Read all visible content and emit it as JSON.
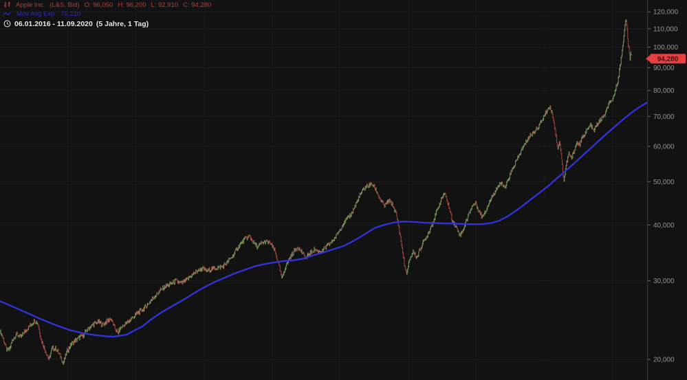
{
  "colors": {
    "background": "#121212",
    "grid": "#1d1d1d",
    "grid_vertical": "#1b1b1b",
    "candle_up": "#86a86a",
    "candle_down": "#ad4a40",
    "moving_average": "#3232d6",
    "axis_text": "#949494",
    "axis_line": "#3a3a3a",
    "tick": "#6e6e6e",
    "badge": "#e84040",
    "badge_text": "#481110",
    "header_red": "#a84440",
    "header_blue": "#2d2db4",
    "header_white": "#e6e6e6"
  },
  "header": {
    "instrument": {
      "icon": "ohlc-bars-icon",
      "name": "Apple Inc.",
      "feed": "(L&S, Bid)",
      "ohlc": {
        "open": "O: 96,050",
        "high": "H: 96,200",
        "low": "L: 92,910",
        "close": "C: 94,280"
      }
    },
    "indicator": {
      "icon": "ma-line-icon",
      "label": "Mov Avg Exp",
      "value": "75,210"
    },
    "range": {
      "icon": "clock-icon",
      "dates": "06.01.2016 - 11.09.2020",
      "granularity": "(5 Jahre, 1 Tag)"
    }
  },
  "y_axis": {
    "scale": "log",
    "ticks": [
      {
        "value": 120,
        "label": "120,000"
      },
      {
        "value": 110,
        "label": "110,000"
      },
      {
        "value": 100,
        "label": "100,000"
      },
      {
        "value": 90,
        "label": "90,000"
      },
      {
        "value": 80,
        "label": "80,000"
      },
      {
        "value": 70,
        "label": "70,000"
      },
      {
        "value": 60,
        "label": "60,000"
      },
      {
        "value": 50,
        "label": "50,000"
      },
      {
        "value": 40,
        "label": "40,000"
      },
      {
        "value": 30,
        "label": "30,000"
      },
      {
        "value": 20,
        "label": "20,000"
      }
    ]
  },
  "price_marker": {
    "label": "94,280",
    "value": 94.28
  },
  "chart_data": {
    "type": "candlestick",
    "instrument": "Apple Inc. (L&S, Bid)",
    "date_range": "06.01.2016 - 11.09.2020",
    "timeframe": "1 Tag",
    "range_label": "5 Jahre",
    "y_scale": "log",
    "ylim": [
      17.9,
      127.7
    ],
    "y_ticks": [
      120,
      110,
      100,
      90,
      80,
      70,
      60,
      50,
      40,
      30,
      20
    ],
    "last_candle": {
      "open": 96.05,
      "high": 96.2,
      "low": 92.91,
      "close": 94.28
    },
    "time_gridlines_x": [
      98,
      198,
      297,
      396,
      494,
      594,
      692,
      792,
      890
    ],
    "price_path": [
      [
        0,
        23.2
      ],
      [
        5,
        22.2
      ],
      [
        10,
        20.9
      ],
      [
        14,
        21.1
      ],
      [
        18,
        22.1
      ],
      [
        24,
        22.8
      ],
      [
        30,
        22.4
      ],
      [
        36,
        23.1
      ],
      [
        44,
        23.8
      ],
      [
        50,
        24.4
      ],
      [
        55,
        24.1
      ],
      [
        60,
        22.1
      ],
      [
        66,
        20.9
      ],
      [
        71,
        19.95
      ],
      [
        76,
        21.2
      ],
      [
        82,
        21.1
      ],
      [
        88,
        20.3
      ],
      [
        92,
        19.6
      ],
      [
        97,
        20.8
      ],
      [
        104,
        21.7
      ],
      [
        112,
        22.2
      ],
      [
        120,
        22.6
      ],
      [
        128,
        23.4
      ],
      [
        136,
        24.0
      ],
      [
        143,
        24.3
      ],
      [
        149,
        23.9
      ],
      [
        155,
        24.3
      ],
      [
        161,
        24.7
      ],
      [
        166,
        23.7
      ],
      [
        171,
        22.9
      ],
      [
        176,
        23.6
      ],
      [
        182,
        24.0
      ],
      [
        188,
        24.4
      ],
      [
        194,
        24.9
      ],
      [
        200,
        25.4
      ],
      [
        208,
        25.9
      ],
      [
        216,
        26.7
      ],
      [
        224,
        27.6
      ],
      [
        232,
        28.4
      ],
      [
        240,
        29.1
      ],
      [
        248,
        29.5
      ],
      [
        256,
        30.0
      ],
      [
        263,
        29.6
      ],
      [
        270,
        30.0
      ],
      [
        278,
        30.8
      ],
      [
        286,
        31.5
      ],
      [
        294,
        32.0
      ],
      [
        301,
        31.5
      ],
      [
        308,
        31.9
      ],
      [
        316,
        32.1
      ],
      [
        324,
        32.3
      ],
      [
        332,
        33.2
      ],
      [
        340,
        34.4
      ],
      [
        348,
        36.0
      ],
      [
        356,
        37.2
      ],
      [
        363,
        37.8
      ],
      [
        369,
        36.4
      ],
      [
        375,
        35.7
      ],
      [
        381,
        36.5
      ],
      [
        387,
        36.7
      ],
      [
        393,
        36.4
      ],
      [
        399,
        35.2
      ],
      [
        405,
        32.8
      ],
      [
        410,
        30.3
      ],
      [
        415,
        32.2
      ],
      [
        421,
        33.7
      ],
      [
        427,
        34.8
      ],
      [
        433,
        35.8
      ],
      [
        439,
        34.7
      ],
      [
        445,
        33.7
      ],
      [
        451,
        34.6
      ],
      [
        457,
        35.3
      ],
      [
        463,
        34.9
      ],
      [
        469,
        35.0
      ],
      [
        475,
        35.8
      ],
      [
        481,
        36.5
      ],
      [
        487,
        37.4
      ],
      [
        493,
        38.8
      ],
      [
        499,
        40.2
      ],
      [
        505,
        41.3
      ],
      [
        511,
        42.4
      ],
      [
        517,
        44.3
      ],
      [
        523,
        46.4
      ],
      [
        529,
        48.2
      ],
      [
        535,
        49.0
      ],
      [
        541,
        49.4
      ],
      [
        547,
        47.8
      ],
      [
        553,
        45.6
      ],
      [
        559,
        44.0
      ],
      [
        565,
        45.3
      ],
      [
        571,
        44.4
      ],
      [
        577,
        41.8
      ],
      [
        583,
        37.0
      ],
      [
        589,
        31.8
      ],
      [
        592,
        31.3
      ],
      [
        596,
        33.6
      ],
      [
        601,
        34.9
      ],
      [
        606,
        33.7
      ],
      [
        611,
        35.4
      ],
      [
        617,
        36.9
      ],
      [
        623,
        38.4
      ],
      [
        629,
        40.3
      ],
      [
        635,
        42.8
      ],
      [
        641,
        45.4
      ],
      [
        646,
        47.2
      ],
      [
        651,
        45.0
      ],
      [
        657,
        41.3
      ],
      [
        663,
        39.6
      ],
      [
        669,
        37.9
      ],
      [
        674,
        39.2
      ],
      [
        680,
        41.7
      ],
      [
        686,
        43.9
      ],
      [
        691,
        44.9
      ],
      [
        696,
        43.2
      ],
      [
        701,
        41.6
      ],
      [
        707,
        43.4
      ],
      [
        713,
        45.4
      ],
      [
        719,
        47.4
      ],
      [
        725,
        49.0
      ],
      [
        730,
        49.6
      ],
      [
        734,
        48.2
      ],
      [
        740,
        51.0
      ],
      [
        746,
        53.6
      ],
      [
        752,
        56.1
      ],
      [
        758,
        58.6
      ],
      [
        764,
        61.1
      ],
      [
        770,
        63.1
      ],
      [
        776,
        64.6
      ],
      [
        782,
        66.1
      ],
      [
        788,
        68.6
      ],
      [
        794,
        71.6
      ],
      [
        799,
        73.6
      ],
      [
        803,
        71.5
      ],
      [
        807,
        65.5
      ],
      [
        811,
        59.5
      ],
      [
        814,
        61.5
      ],
      [
        817,
        55.5
      ],
      [
        820,
        50.2
      ],
      [
        823,
        54.0
      ],
      [
        827,
        57.8
      ],
      [
        831,
        56.3
      ],
      [
        835,
        58.8
      ],
      [
        839,
        61.2
      ],
      [
        843,
        60.4
      ],
      [
        847,
        62.8
      ],
      [
        851,
        64.3
      ],
      [
        855,
        65.6
      ],
      [
        859,
        67.0
      ],
      [
        863,
        64.7
      ],
      [
        867,
        66.8
      ],
      [
        871,
        68.0
      ],
      [
        875,
        69.3
      ],
      [
        879,
        70.3
      ],
      [
        883,
        72.8
      ],
      [
        887,
        75.8
      ],
      [
        890,
        74.6
      ],
      [
        893,
        78.4
      ],
      [
        896,
        81.4
      ],
      [
        899,
        85.0
      ],
      [
        902,
        91.0
      ],
      [
        905,
        99.0
      ],
      [
        907,
        106.0
      ],
      [
        909,
        112.5
      ],
      [
        910,
        115.3
      ],
      [
        912,
        109.5
      ],
      [
        913,
        103.5
      ],
      [
        915,
        97.0
      ],
      [
        916,
        93.4
      ],
      [
        917,
        97.9
      ],
      [
        918,
        96.2
      ],
      [
        919,
        94.28
      ]
    ],
    "ma_path": [
      [
        0,
        27.0
      ],
      [
        20,
        26.2
      ],
      [
        40,
        25.4
      ],
      [
        60,
        24.6
      ],
      [
        80,
        23.9
      ],
      [
        100,
        23.3
      ],
      [
        120,
        22.9
      ],
      [
        140,
        22.65
      ],
      [
        155,
        22.52
      ],
      [
        165,
        22.49
      ],
      [
        175,
        22.6
      ],
      [
        185,
        22.75
      ],
      [
        195,
        23.2
      ],
      [
        207,
        23.7
      ],
      [
        220,
        24.6
      ],
      [
        235,
        25.5
      ],
      [
        250,
        26.3
      ],
      [
        265,
        27.1
      ],
      [
        280,
        28.0
      ],
      [
        295,
        28.9
      ],
      [
        310,
        29.7
      ],
      [
        325,
        30.4
      ],
      [
        340,
        31.1
      ],
      [
        355,
        31.7
      ],
      [
        370,
        32.3
      ],
      [
        385,
        32.7
      ],
      [
        400,
        33.0
      ],
      [
        412,
        33.2
      ],
      [
        425,
        33.3
      ],
      [
        440,
        33.6
      ],
      [
        455,
        34.2
      ],
      [
        470,
        34.7
      ],
      [
        485,
        35.3
      ],
      [
        500,
        35.9
      ],
      [
        515,
        36.9
      ],
      [
        530,
        38.1
      ],
      [
        545,
        39.4
      ],
      [
        558,
        40.0
      ],
      [
        572,
        40.5
      ],
      [
        586,
        40.7
      ],
      [
        600,
        40.65
      ],
      [
        615,
        40.5
      ],
      [
        630,
        40.4
      ],
      [
        645,
        40.35
      ],
      [
        660,
        40.3
      ],
      [
        675,
        40.2
      ],
      [
        690,
        40.15
      ],
      [
        702,
        40.2
      ],
      [
        714,
        40.4
      ],
      [
        726,
        40.9
      ],
      [
        738,
        41.8
      ],
      [
        750,
        43.0
      ],
      [
        762,
        44.4
      ],
      [
        774,
        45.9
      ],
      [
        786,
        47.4
      ],
      [
        798,
        49.0
      ],
      [
        810,
        50.9
      ],
      [
        822,
        52.8
      ],
      [
        834,
        54.8
      ],
      [
        846,
        57.0
      ],
      [
        858,
        59.2
      ],
      [
        870,
        61.6
      ],
      [
        882,
        64.0
      ],
      [
        894,
        66.4
      ],
      [
        906,
        68.9
      ],
      [
        918,
        71.3
      ],
      [
        930,
        73.5
      ],
      [
        941,
        75.2
      ]
    ]
  }
}
